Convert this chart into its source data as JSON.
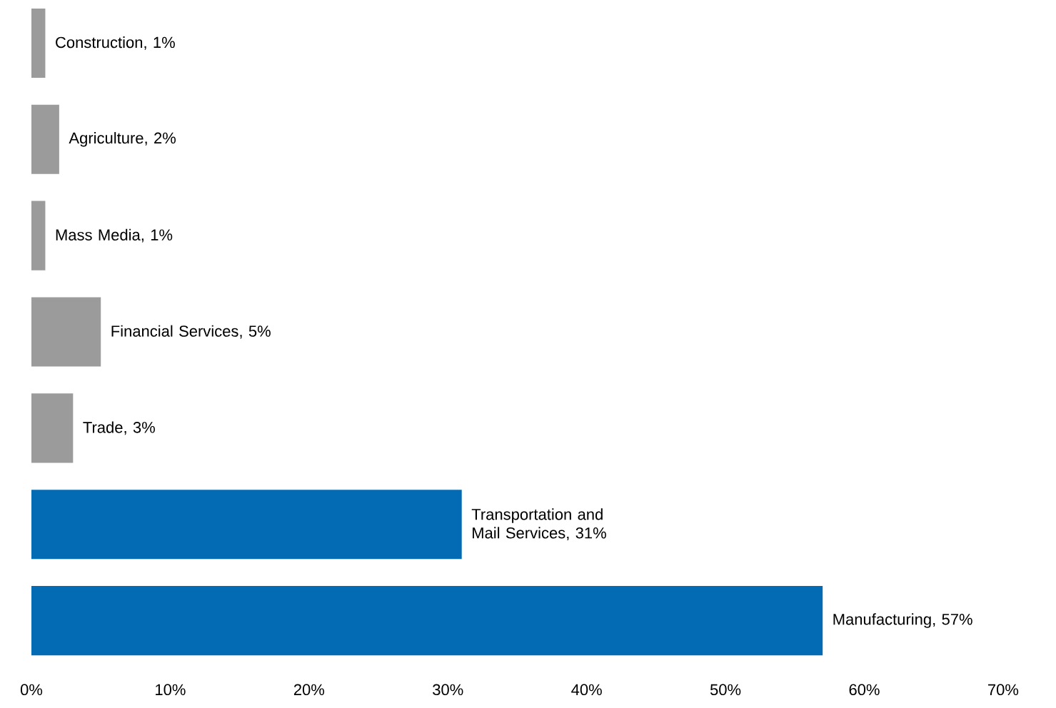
{
  "chart_data": {
    "type": "bar",
    "orientation": "horizontal",
    "categories": [
      null,
      null,
      null,
      null,
      null,
      null,
      null
    ],
    "values": [
      1,
      2,
      1,
      5,
      3,
      31,
      57
    ],
    "colors": [
      "#9b9b9b",
      "#9b9b9b",
      "#9b9b9b",
      "#9b9b9b",
      "#9b9b9b",
      "#036bb4",
      "#036bb4"
    ],
    "value_labels": [
      "Construction, 1%",
      "Agriculture, 2%",
      "Mass Media, 1%",
      "Financial Services, 5%",
      "Trade, 3%",
      "Transportation and Mail Services, 31%",
      "Manufacturing, 57%"
    ],
    "xlim": [
      0,
      70
    ],
    "xticks": [
      {
        "value": 0,
        "label": "0%"
      },
      {
        "value": 10,
        "label": "10%"
      },
      {
        "value": 20,
        "label": "20%"
      },
      {
        "value": 30,
        "label": "30%"
      },
      {
        "value": 40,
        "label": "40%"
      },
      {
        "value": 50,
        "label": "50%"
      },
      {
        "value": 60,
        "label": "60%"
      },
      {
        "value": 70,
        "label": "70%"
      }
    ],
    "grid": false
  }
}
